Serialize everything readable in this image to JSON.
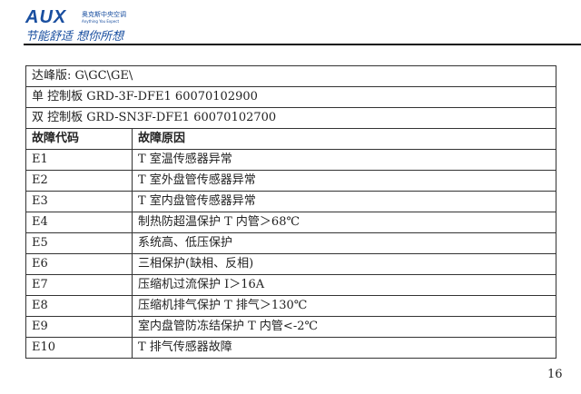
{
  "logo": {
    "brand": "AUX",
    "cn": "奥克斯中央空调",
    "en": "Anything You Expect",
    "slogan": "节能舒适 想你所想"
  },
  "table": {
    "info_rows": [
      "达峰版: G\\GC\\GE\\",
      "单 控制板 GRD-3F-DFE1 60070102900",
      "双 控制板 GRD-SN3F-DFE1 60070102700"
    ],
    "headers": [
      "故障代码",
      "故障原因"
    ],
    "rows": [
      {
        "code": "E1",
        "cause": "T 室温传感器异常"
      },
      {
        "code": "E2",
        "cause": "T 室外盘管传感器异常"
      },
      {
        "code": "E3",
        "cause": "T 室内盘管传感器异常"
      },
      {
        "code": "E4",
        "cause": "制热防超温保护 T 内管＞68℃"
      },
      {
        "code": "E5",
        "cause": "系统高、低压保护"
      },
      {
        "code": "E6",
        "cause": "三相保护(缺相、反相)"
      },
      {
        "code": "E7",
        "cause": "压缩机过流保护 I＞16A"
      },
      {
        "code": "E8",
        "cause": "压缩机排气保护 T 排气＞130℃"
      },
      {
        "code": "E9",
        "cause": "室内盘管防冻结保护  T 内管<-2℃"
      },
      {
        "code": "E10",
        "cause": "T 排气传感器故障"
      }
    ]
  },
  "page_number": "16"
}
